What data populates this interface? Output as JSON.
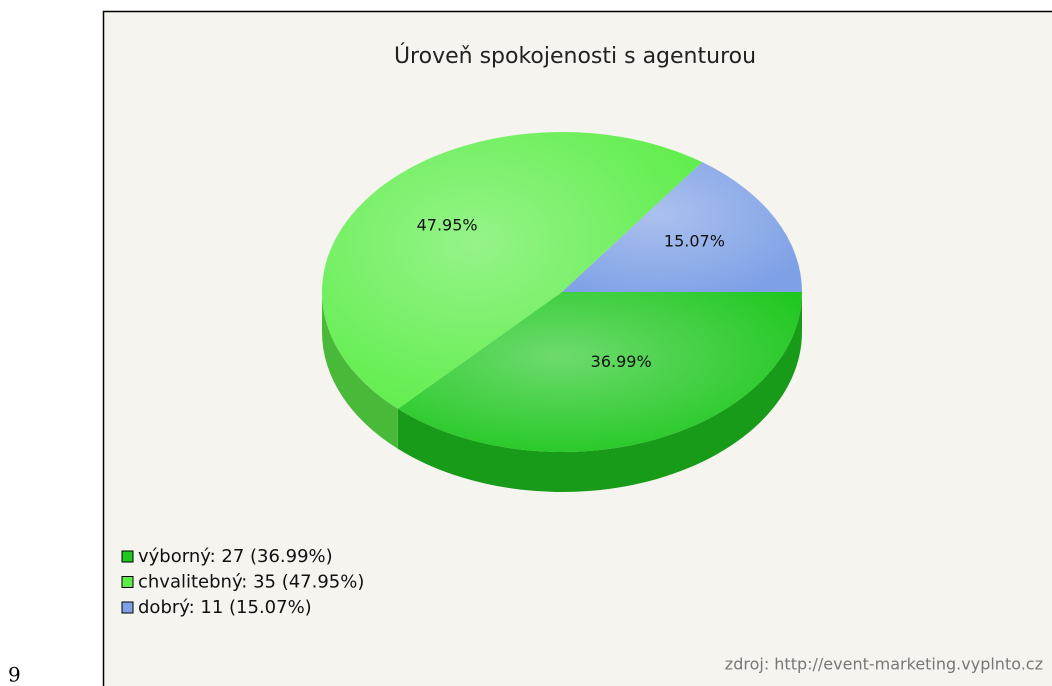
{
  "page_number": "9",
  "chart_data": {
    "type": "pie",
    "title": "Úroveň spokojenosti s agenturou",
    "categories": [
      "výborný",
      "chvalitebný",
      "dobrý"
    ],
    "values": [
      36.99,
      47.95,
      15.07
    ],
    "value_labels": [
      "36.99%",
      "47.95%",
      "15.07%"
    ],
    "legend_labels": [
      "výborný: 27 (36.99%)",
      "chvalitebný: 35 (47.95%)",
      "dobrý: 11 (15.07%)"
    ],
    "colors": [
      "#1fc71f",
      "#5ded49",
      "#7ea0e6"
    ],
    "legend": "bottom-left",
    "source": "zdroj: http://event-marketing.vyplnto.cz"
  }
}
